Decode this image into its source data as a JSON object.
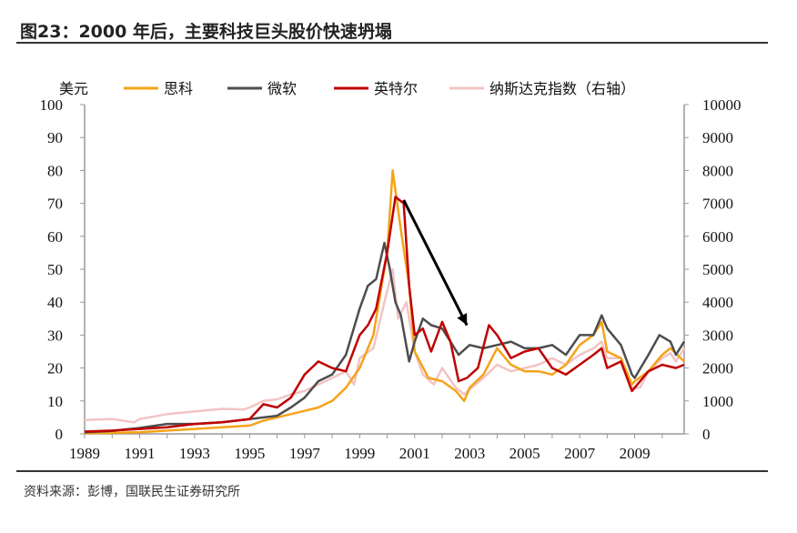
{
  "title": "图23：2000 年后，主要科技巨头股价快速坍塌",
  "source": "资料来源：彭博，国联民生证券研究所",
  "chart_data": {
    "type": "line",
    "title": "图23：2000 年后，主要科技巨头股价快速坍塌",
    "ylabel": "美元",
    "y2label": "右轴",
    "xlim": [
      1989,
      2010.8
    ],
    "ylim": [
      0,
      100
    ],
    "y2lim": [
      0,
      10000
    ],
    "xticks": [
      1989,
      1991,
      1993,
      1995,
      1997,
      1999,
      2001,
      2003,
      2005,
      2007,
      2009
    ],
    "yticks": [
      0,
      10,
      20,
      30,
      40,
      50,
      60,
      70,
      80,
      90,
      100
    ],
    "y2ticks": [
      0,
      1000,
      2000,
      3000,
      4000,
      5000,
      6000,
      7000,
      8000,
      9000,
      10000
    ],
    "legend_position": "top",
    "grid": false,
    "series": [
      {
        "name": "思科",
        "axis": "left",
        "color": "#F5A31A",
        "x": [
          1989,
          1990,
          1991,
          1992,
          1993,
          1994,
          1995,
          1995.5,
          1996,
          1996.5,
          1997,
          1997.5,
          1998,
          1998.5,
          1999,
          1999.5,
          2000,
          2000.2,
          2000.5,
          2000.8,
          2001,
          2001.5,
          2002,
          2002.5,
          2002.8,
          2003,
          2003.5,
          2004,
          2004.5,
          2005,
          2005.5,
          2006,
          2006.5,
          2007,
          2007.5,
          2007.8,
          2008,
          2008.5,
          2008.9,
          2009,
          2009.5,
          2010,
          2010.3,
          2010.8
        ],
        "values": [
          0.2,
          0.3,
          0.5,
          1,
          1.5,
          2,
          2.5,
          4,
          5,
          6,
          7,
          8,
          10,
          14,
          20,
          30,
          55,
          80,
          62,
          45,
          25,
          17,
          16,
          13,
          10,
          14,
          18,
          26,
          21,
          19,
          19,
          18,
          21,
          27,
          30,
          34,
          25,
          23,
          15,
          16,
          19,
          24,
          26,
          22
        ]
      },
      {
        "name": "微软",
        "axis": "left",
        "color": "#4D4D4D",
        "x": [
          1989,
          1990,
          1991,
          1992,
          1993,
          1994,
          1995,
          1996,
          1996.5,
          1997,
          1997.5,
          1998,
          1998.5,
          1999,
          1999.3,
          1999.6,
          1999.9,
          2000.1,
          2000.3,
          2000.5,
          2000.8,
          2001,
          2001.3,
          2001.6,
          2002,
          2002.3,
          2002.6,
          2003,
          2003.5,
          2004,
          2004.5,
          2005,
          2005.5,
          2006,
          2006.5,
          2007,
          2007.5,
          2007.8,
          2008,
          2008.5,
          2008.9,
          2009,
          2009.5,
          2009.9,
          2010.3,
          2010.5,
          2010.8
        ],
        "values": [
          0.5,
          0.9,
          1.8,
          3,
          3,
          3.5,
          4.5,
          5.5,
          8,
          11,
          16,
          18,
          24,
          38,
          45,
          47,
          58,
          50,
          40,
          36,
          22,
          28,
          35,
          33,
          32,
          28,
          24,
          27,
          26,
          27,
          28,
          26,
          26,
          27,
          24,
          30,
          30,
          36,
          32,
          27,
          18,
          17,
          24,
          30,
          28,
          24,
          28
        ]
      },
      {
        "name": "英特尔",
        "axis": "left",
        "color": "#C00000",
        "x": [
          1989,
          1990,
          1991,
          1992,
          1993,
          1994,
          1995,
          1995.5,
          1996,
          1996.5,
          1997,
          1997.5,
          1998,
          1998.5,
          1999,
          1999.3,
          1999.6,
          2000,
          2000.3,
          2000.6,
          2000.8,
          2001,
          2001.3,
          2001.6,
          2002,
          2002.3,
          2002.6,
          2002.9,
          2003.3,
          2003.7,
          2004,
          2004.5,
          2005,
          2005.5,
          2006,
          2006.5,
          2007,
          2007.5,
          2007.8,
          2008,
          2008.5,
          2008.9,
          2009,
          2009.5,
          2010,
          2010.5,
          2010.8
        ],
        "values": [
          0.7,
          1,
          1.5,
          2,
          3,
          3.5,
          4.5,
          9,
          8,
          11,
          18,
          22,
          20,
          19,
          30,
          33,
          38,
          55,
          72,
          70,
          45,
          30,
          32,
          25,
          34,
          28,
          16,
          17,
          20,
          33,
          30,
          23,
          25,
          26,
          20,
          18,
          21,
          24,
          26,
          20,
          22,
          13,
          14,
          19,
          21,
          20,
          21
        ]
      },
      {
        "name": "纳斯达克指数（右轴）",
        "axis": "right",
        "color": "#F2C4C4",
        "x": [
          1989,
          1990,
          1990.8,
          1991,
          1992,
          1993,
          1994,
          1994.8,
          1995,
          1995.5,
          1996,
          1996.5,
          1997,
          1997.5,
          1998,
          1998.5,
          1998.8,
          1999,
          1999.5,
          1999.9,
          2000.2,
          2000.4,
          2000.7,
          2001,
          2001.3,
          2001.7,
          2002,
          2002.5,
          2002.8,
          2003,
          2003.5,
          2004,
          2004.5,
          2005,
          2005.5,
          2006,
          2006.5,
          2007,
          2007.5,
          2007.8,
          2008,
          2008.5,
          2008.9,
          2009.2,
          2009.5,
          2010,
          2010.3,
          2010.5,
          2010.8
        ],
        "values": [
          420,
          450,
          350,
          450,
          600,
          680,
          760,
          740,
          800,
          1000,
          1050,
          1200,
          1300,
          1500,
          1700,
          1900,
          1500,
          2300,
          2600,
          4000,
          5000,
          3500,
          4000,
          2500,
          1800,
          1500,
          2000,
          1400,
          1200,
          1350,
          1700,
          2100,
          1900,
          2000,
          2100,
          2300,
          2100,
          2400,
          2600,
          2800,
          2300,
          2300,
          1400,
          1400,
          1900,
          2300,
          2450,
          2200,
          2600
        ]
      }
    ],
    "annotations": [
      {
        "type": "arrow",
        "from": [
          2000.6,
          71
        ],
        "to": [
          2002.9,
          33
        ],
        "color": "#000000"
      }
    ]
  }
}
